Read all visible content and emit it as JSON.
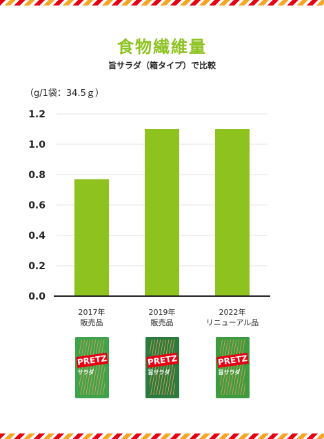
{
  "title": "食物繊維量",
  "subtitle": "旨サラダ（箱タイプ）で比較",
  "unit_note": "（g/1袋：34.5ｇ）",
  "chart_data": {
    "type": "bar",
    "categories": [
      "2017年\n販売品",
      "2019年\n販売品",
      "2022年\nリニューアル品"
    ],
    "values": [
      0.77,
      1.1,
      1.1
    ],
    "ylim": [
      0,
      1.2
    ],
    "yticks": [
      "0.0",
      "0.2",
      "0.4",
      "0.6",
      "0.8",
      "1.0",
      "1.2"
    ],
    "grid": true,
    "bar_color": "#8dc21f"
  },
  "packages": [
    {
      "brand": "PRETZ",
      "name": "サラダ",
      "color": "#3ea34a"
    },
    {
      "brand": "PRETZ",
      "name": "旨サラダ",
      "color": "#2c7a3e"
    },
    {
      "brand": "PRETZ",
      "name": "旨サラダ",
      "color": "#3d9a3f"
    }
  ],
  "colors": {
    "accent": "#8dc21f",
    "stripe_red": "#e60012",
    "stripe_orange": "#f5a623"
  }
}
